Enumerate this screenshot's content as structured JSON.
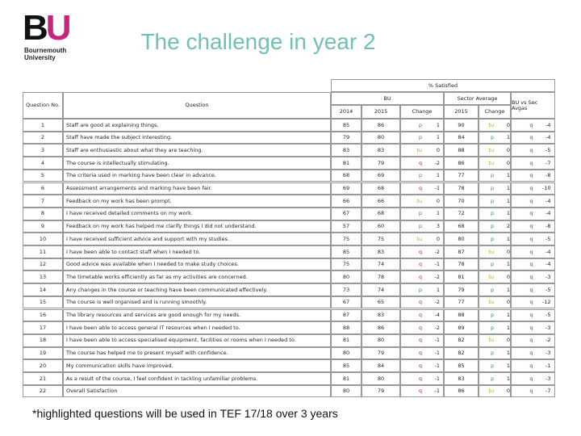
{
  "logo": {
    "mark": "BU",
    "line1": "Bournemouth",
    "line2": "University"
  },
  "title": "The challenge in year 2",
  "table": {
    "header": {
      "satisfied": "% Satisfied",
      "bu": "BU",
      "sector": "Sector Average",
      "diff": "BU vs Sec Avgas",
      "no": "Question No.",
      "question": "Question",
      "y2014": "2014",
      "y2015": "2015",
      "change": "Change",
      "sector2015": "2015",
      "sector_change": "Change"
    },
    "rows": [
      [
        1,
        "Staff are good at explaining things.",
        85,
        86,
        "p",
        1,
        90,
        "tu",
        0,
        "q",
        -4
      ],
      [
        2,
        "Staff have made the subject interesting.",
        79,
        80,
        "p",
        1,
        84,
        "p",
        1,
        "q",
        -4
      ],
      [
        3,
        "Staff are enthusiastic about what they are teaching.",
        83,
        83,
        "tu",
        0,
        88,
        "tu",
        0,
        "q",
        -5
      ],
      [
        4,
        "The course is intellectually stimulating.",
        81,
        79,
        "q",
        -2,
        86,
        "tu",
        0,
        "q",
        -7
      ],
      [
        5,
        "The criteria used in marking have been clear in advance.",
        68,
        69,
        "p",
        1,
        77,
        "p",
        1,
        "q",
        -8
      ],
      [
        6,
        "Assessment arrangements and marking have been fair.",
        69,
        68,
        "q",
        -1,
        78,
        "p",
        1,
        "q",
        -10
      ],
      [
        7,
        "Feedback on my work has been prompt.",
        66,
        66,
        "tu",
        0,
        70,
        "p",
        1,
        "q",
        -4
      ],
      [
        8,
        "I have received detailed comments on my work.",
        67,
        68,
        "p",
        1,
        72,
        "p",
        1,
        "q",
        -4
      ],
      [
        9,
        "Feedback on my work has helped me clarify things I did not understand.",
        57,
        60,
        "p",
        3,
        68,
        "p",
        2,
        "q",
        -8
      ],
      [
        10,
        "I have received sufficient advice and support with my studies.",
        75,
        75,
        "tu",
        0,
        80,
        "p",
        1,
        "q",
        -5
      ],
      [
        11,
        "I have been able to contact staff when I needed to.",
        85,
        83,
        "q",
        -2,
        87,
        "tu",
        0,
        "q",
        -4
      ],
      [
        12,
        "Good advice was available when I needed to make study choices.",
        75,
        74,
        "q",
        -1,
        78,
        "p",
        1,
        "q",
        -4
      ],
      [
        13,
        "The timetable works efficiently as far as my activities are concerned.",
        80,
        78,
        "q",
        -2,
        81,
        "tu",
        0,
        "q",
        -3
      ],
      [
        14,
        "Any changes in the course or teaching have been communicated effectively.",
        73,
        74,
        "p",
        1,
        79,
        "p",
        1,
        "q",
        -5
      ],
      [
        15,
        "The course is well organised and is running smoothly.",
        67,
        65,
        "q",
        -2,
        77,
        "tu",
        0,
        "q",
        -12
      ],
      [
        16,
        "The library resources and services are good enough for my needs.",
        87,
        83,
        "q",
        -4,
        88,
        "p",
        1,
        "q",
        -5
      ],
      [
        17,
        "I have been able to access general IT resources when I needed to.",
        88,
        86,
        "q",
        -2,
        89,
        "p",
        1,
        "q",
        -3
      ],
      [
        18,
        "I have been able to access specialised equipment, facilities or rooms when I needed to.",
        81,
        80,
        "q",
        -1,
        82,
        "tu",
        0,
        "q",
        -2
      ],
      [
        19,
        "The course has helped me to present myself with confidence.",
        80,
        79,
        "q",
        -1,
        82,
        "p",
        1,
        "q",
        -3
      ],
      [
        20,
        "My communication skills have improved.",
        85,
        84,
        "q",
        -1,
        85,
        "p",
        1,
        "q",
        -1
      ],
      [
        21,
        "As a result of the course, I feel confident in tackling unfamiliar problems.",
        81,
        80,
        "q",
        -1,
        83,
        "p",
        1,
        "q",
        -3
      ],
      [
        22,
        "Overall Satisfaction",
        80,
        79,
        "q",
        -1,
        86,
        "tu",
        0,
        "q",
        -7
      ]
    ]
  },
  "footnote": "*highlighted questions will be used in TEF 17/18 over 3 years"
}
